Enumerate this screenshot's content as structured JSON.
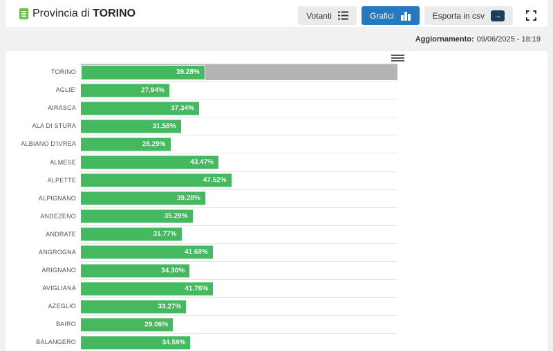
{
  "header": {
    "title": {
      "prefix": "Provincia di",
      "name": "TORINO"
    },
    "toolbar": {
      "votanti_label": "Votanti",
      "grafici_label": "Grafici",
      "esporta_label": "Esporta in csv"
    }
  },
  "subheader": {
    "update_label": "Aggiornamento:",
    "update_value": "09/06/2025 - 18:19"
  },
  "colors": {
    "bar_green": "#44b95f",
    "selected_track_gray": "#b3b3b3",
    "active_button_blue": "#2878bd",
    "export_icon_navy": "#1d3d5c",
    "title_icon_green": "#6cc04a"
  },
  "icons": {
    "title": "document-icon",
    "votanti": "list-icon",
    "grafici": "bar-chart-icon",
    "esporta": "export-arrow-icon",
    "fullscreen": "fullscreen-icon",
    "chart_menu": "hamburger-menu-icon"
  },
  "chart_data": {
    "type": "bar",
    "orientation": "horizontal",
    "title": "",
    "xlabel": "",
    "ylabel": "",
    "xlim": [
      0,
      100
    ],
    "unit": "%",
    "grid": true,
    "legend": false,
    "selected_category": "TORINO",
    "categories": [
      "TORINO",
      "AGLIE'",
      "AIRASCA",
      "ALA DI STURA",
      "ALBIANO D'IVREA",
      "ALMESE",
      "ALPETTE",
      "ALPIGNANO",
      "ANDEZENO",
      "ANDRATE",
      "ANGROGNA",
      "ARIGNANO",
      "AVIGLIANA",
      "AZEGLIO",
      "BAIRO",
      "BALANGERO"
    ],
    "values": [
      39.28,
      27.94,
      37.34,
      31.58,
      28.29,
      43.47,
      47.52,
      39.28,
      35.29,
      31.77,
      41.68,
      34.3,
      41.76,
      33.27,
      29.06,
      34.59
    ],
    "value_labels": [
      "39.28%",
      "27.94%",
      "37.34%",
      "31.58%",
      "28.29%",
      "43.47%",
      "47.52%",
      "39.28%",
      "35.29%",
      "31.77%",
      "41.68%",
      "34.30%",
      "41.76%",
      "33.27%",
      "29.06%",
      "34.59%"
    ]
  }
}
